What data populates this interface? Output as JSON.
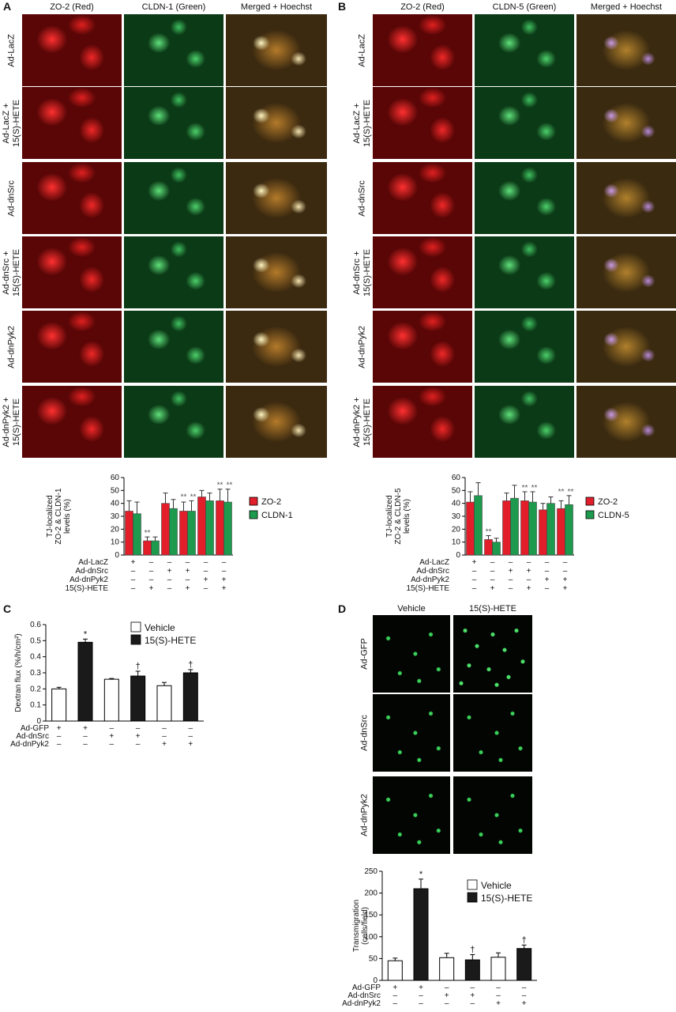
{
  "panels": {
    "A": {
      "letter": "A",
      "columns": [
        "ZO-2 (Red)",
        "CLDN-1 (Green)",
        "Merged + Hoechst"
      ],
      "rows": [
        [
          "Ad-LacZ"
        ],
        [
          "Ad-LacZ +",
          "15(S)-HETE"
        ],
        [
          "Ad-dnSrc"
        ],
        [
          "Ad-dnSrc +",
          "15(S)-HETE"
        ],
        [
          "Ad-dnPyk2"
        ],
        [
          "Ad-dnPyk2 +",
          "15(S)-HETE"
        ]
      ]
    },
    "B": {
      "letter": "B",
      "columns": [
        "ZO-2 (Red)",
        "CLDN-5 (Green)",
        "Merged + Hoechst"
      ],
      "rows": [
        [
          "Ad-LacZ"
        ],
        [
          "Ad-LacZ +",
          "15(S)-HETE"
        ],
        [
          "Ad-dnSrc"
        ],
        [
          "Ad-dnSrc +",
          "15(S)-HETE"
        ],
        [
          "Ad-dnPyk2"
        ],
        [
          "Ad-dnPyk2 +",
          "15(S)-HETE"
        ]
      ]
    },
    "C": {
      "letter": "C"
    },
    "D": {
      "letter": "D",
      "columns": [
        "Vehicle",
        "15(S)-HETE"
      ],
      "rows": [
        "Ad-GFP",
        "Ad-dnSrc",
        "Ad-dnPyk2"
      ]
    }
  },
  "colors": {
    "red": "#e11e2a",
    "green": "#1d9a4e",
    "black": "#1a1a1a",
    "white": "#ffffff"
  },
  "chart_data": [
    {
      "id": "A-bar",
      "type": "bar",
      "ylabel": [
        "TJ-localized",
        "ZO-2 & CLDN-1",
        "levels (%)"
      ],
      "ylim": [
        0,
        60
      ],
      "yticks": [
        0,
        10,
        20,
        30,
        40,
        50,
        60
      ],
      "series": [
        {
          "name": "ZO-2",
          "color": "red",
          "values": [
            34,
            11,
            40,
            34,
            45,
            42
          ],
          "errors": [
            8,
            3,
            8,
            7,
            5,
            9
          ]
        },
        {
          "name": "CLDN-1",
          "color": "green",
          "values": [
            32,
            11,
            36,
            34,
            42,
            41
          ],
          "errors": [
            9,
            3,
            7,
            8,
            6,
            10
          ]
        }
      ],
      "annotations": [
        "",
        "**",
        "",
        "**",
        "",
        "**"
      ],
      "annotations2": [
        "",
        "",
        "",
        "**",
        "",
        "**"
      ],
      "conditions": [
        {
          "label": "Ad-LacZ",
          "marks": [
            "+",
            "–",
            "–",
            "–",
            "–",
            "–"
          ]
        },
        {
          "label": "Ad-dnSrc",
          "marks": [
            "–",
            "–",
            "+",
            "+",
            "–",
            "–"
          ]
        },
        {
          "label": "Ad-dnPyk2",
          "marks": [
            "–",
            "–",
            "–",
            "–",
            "+",
            "+"
          ]
        },
        {
          "label": "15(S)-HETE",
          "marks": [
            "–",
            "+",
            "–",
            "+",
            "–",
            "+"
          ]
        }
      ],
      "legend": [
        "ZO-2",
        "CLDN-1"
      ]
    },
    {
      "id": "B-bar",
      "type": "bar",
      "ylabel": [
        "TJ-localized",
        "ZO-2 & CLDN-5",
        "levels (%)"
      ],
      "ylim": [
        0,
        60
      ],
      "yticks": [
        0,
        10,
        20,
        30,
        40,
        50,
        60
      ],
      "series": [
        {
          "name": "ZO-2",
          "color": "red",
          "values": [
            41,
            12,
            42,
            42,
            35,
            36
          ],
          "errors": [
            8,
            3,
            6,
            7,
            5,
            6
          ]
        },
        {
          "name": "CLDN-5",
          "color": "green",
          "values": [
            46,
            10,
            44,
            41,
            40,
            39
          ],
          "errors": [
            10,
            3,
            10,
            8,
            5,
            7
          ]
        }
      ],
      "annotations": [
        "",
        "**",
        "",
        "**",
        "",
        "**"
      ],
      "annotations2": [
        "",
        "",
        "",
        "**",
        "",
        "**"
      ],
      "conditions": [
        {
          "label": "Ad-LacZ",
          "marks": [
            "+",
            "–",
            "–",
            "–",
            "–",
            "–"
          ]
        },
        {
          "label": "Ad-dnSrc",
          "marks": [
            "–",
            "–",
            "+",
            "+",
            "–",
            "–"
          ]
        },
        {
          "label": "Ad-dnPyk2",
          "marks": [
            "–",
            "–",
            "–",
            "–",
            "+",
            "+"
          ]
        },
        {
          "label": "15(S)-HETE",
          "marks": [
            "–",
            "+",
            "–",
            "+",
            "–",
            "+"
          ]
        }
      ],
      "legend": [
        "ZO-2",
        "CLDN-5"
      ]
    },
    {
      "id": "C-bar",
      "type": "bar",
      "ylabel": [
        "Dextran flux (%/h/cm²)"
      ],
      "ylim": [
        0,
        0.6
      ],
      "yticks": [
        0,
        0.1,
        0.2,
        0.3,
        0.4,
        0.5,
        0.6
      ],
      "values": [
        0.2,
        0.49,
        0.26,
        0.28,
        0.22,
        0.3
      ],
      "errors": [
        0.01,
        0.02,
        0.005,
        0.03,
        0.02,
        0.02
      ],
      "fills": [
        "white",
        "black",
        "white",
        "black",
        "white",
        "black"
      ],
      "annotations": [
        "",
        "*",
        "",
        "†",
        "",
        "†"
      ],
      "conditions": [
        {
          "label": "Ad-GFP",
          "marks": [
            "+",
            "+",
            "–",
            "–",
            "–",
            "–"
          ]
        },
        {
          "label": "Ad-dnSrc",
          "marks": [
            "–",
            "–",
            "+",
            "+",
            "–",
            "–"
          ]
        },
        {
          "label": "Ad-dnPyk2",
          "marks": [
            "–",
            "–",
            "–",
            "–",
            "+",
            "+"
          ]
        }
      ],
      "legend": [
        "Vehicle",
        "15(S)-HETE"
      ]
    },
    {
      "id": "D-bar",
      "type": "bar",
      "ylabel": [
        "Transmigration",
        "(cells/field)"
      ],
      "ylim": [
        0,
        250
      ],
      "yticks": [
        0,
        50,
        100,
        150,
        200,
        250
      ],
      "values": [
        45,
        210,
        52,
        47,
        53,
        73
      ],
      "errors": [
        6,
        22,
        10,
        12,
        10,
        8
      ],
      "fills": [
        "white",
        "black",
        "white",
        "black",
        "white",
        "black"
      ],
      "annotations": [
        "",
        "*",
        "",
        "†",
        "",
        "†"
      ],
      "conditions": [
        {
          "label": "Ad-GFP",
          "marks": [
            "+",
            "+",
            "–",
            "–",
            "–",
            "–"
          ]
        },
        {
          "label": "Ad-dnSrc",
          "marks": [
            "–",
            "–",
            "+",
            "+",
            "–",
            "–"
          ]
        },
        {
          "label": "Ad-dnPyk2",
          "marks": [
            "–",
            "–",
            "–",
            "–",
            "+",
            "+"
          ]
        }
      ],
      "legend": [
        "Vehicle",
        "15(S)-HETE"
      ]
    }
  ]
}
